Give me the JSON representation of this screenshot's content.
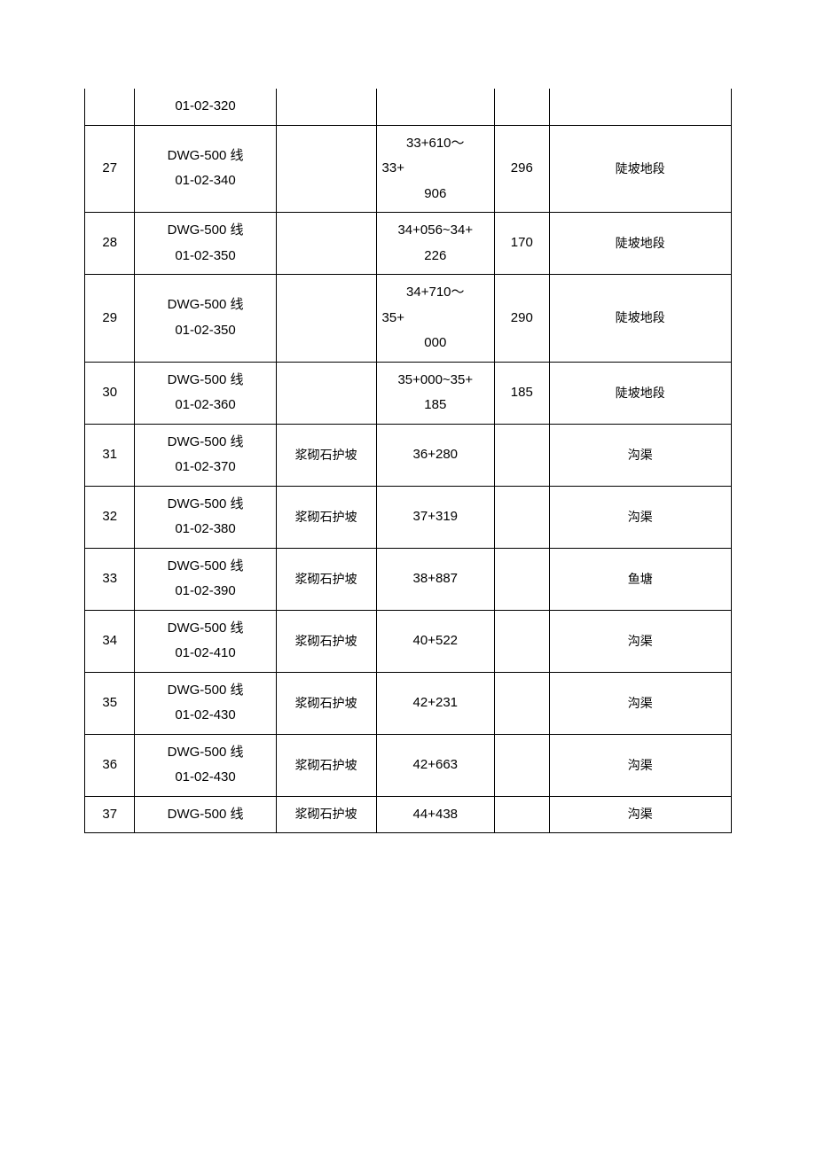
{
  "table": {
    "columns": [
      "col0",
      "col1",
      "col2",
      "col3",
      "col4",
      "col5"
    ],
    "rows": [
      {
        "idx": "",
        "code": "01-02-320",
        "type": "",
        "station": "",
        "len": "",
        "note": "",
        "top_noborder": true,
        "single_line": true
      },
      {
        "idx": "27",
        "code_l1": "DWG-500 线",
        "code_l2": "01-02-340",
        "type": "",
        "station_l1": "33+610～",
        "station_l2": "33+",
        "station_l3": "906",
        "station_align_l2": "left",
        "len": "296",
        "note": "陡坡地段"
      },
      {
        "idx": "28",
        "code_l1": "DWG-500 线",
        "code_l2": "01-02-350",
        "type": "",
        "station_l1": "34+056~34+",
        "station_l2": "226",
        "len": "170",
        "note": "陡坡地段"
      },
      {
        "idx": "29",
        "code_l1": "DWG-500 线",
        "code_l2": "01-02-350",
        "type": "",
        "station_l1": "34+710～",
        "station_l2": "35+",
        "station_l3": "000",
        "station_align_l2": "left",
        "len": "290",
        "note": "陡坡地段"
      },
      {
        "idx": "30",
        "code_l1": "DWG-500 线",
        "code_l2": "01-02-360",
        "type": "",
        "station_l1": "35+000~35+",
        "station_l2": "185",
        "len": "185",
        "note": "陡坡地段"
      },
      {
        "idx": "31",
        "code_l1": "DWG-500 线",
        "code_l2": "01-02-370",
        "type": "浆砌石护坡",
        "station_l1": "36+280",
        "len": "",
        "note": "沟渠"
      },
      {
        "idx": "32",
        "code_l1": "DWG-500 线",
        "code_l2": "01-02-380",
        "type": "浆砌石护坡",
        "station_l1": "37+319",
        "len": "",
        "note": "沟渠"
      },
      {
        "idx": "33",
        "code_l1": "DWG-500 线",
        "code_l2": "01-02-390",
        "type": "浆砌石护坡",
        "station_l1": "38+887",
        "len": "",
        "note": "鱼塘"
      },
      {
        "idx": "34",
        "code_l1": "DWG-500 线",
        "code_l2": "01-02-410",
        "type": "浆砌石护坡",
        "station_l1": "40+522",
        "len": "",
        "note": "沟渠"
      },
      {
        "idx": "35",
        "code_l1": "DWG-500 线",
        "code_l2": "01-02-430",
        "type": "浆砌石护坡",
        "station_l1": "42+231",
        "len": "",
        "note": "沟渠"
      },
      {
        "idx": "36",
        "code_l1": "DWG-500 线",
        "code_l2": "01-02-430",
        "type": "浆砌石护坡",
        "station_l1": "42+663",
        "len": "",
        "note": "沟渠"
      },
      {
        "idx": "37",
        "code_l1": "DWG-500 线",
        "type": "浆砌石护坡",
        "station_l1": "44+438",
        "len": "",
        "note": "沟渠",
        "single_code": true
      }
    ]
  }
}
